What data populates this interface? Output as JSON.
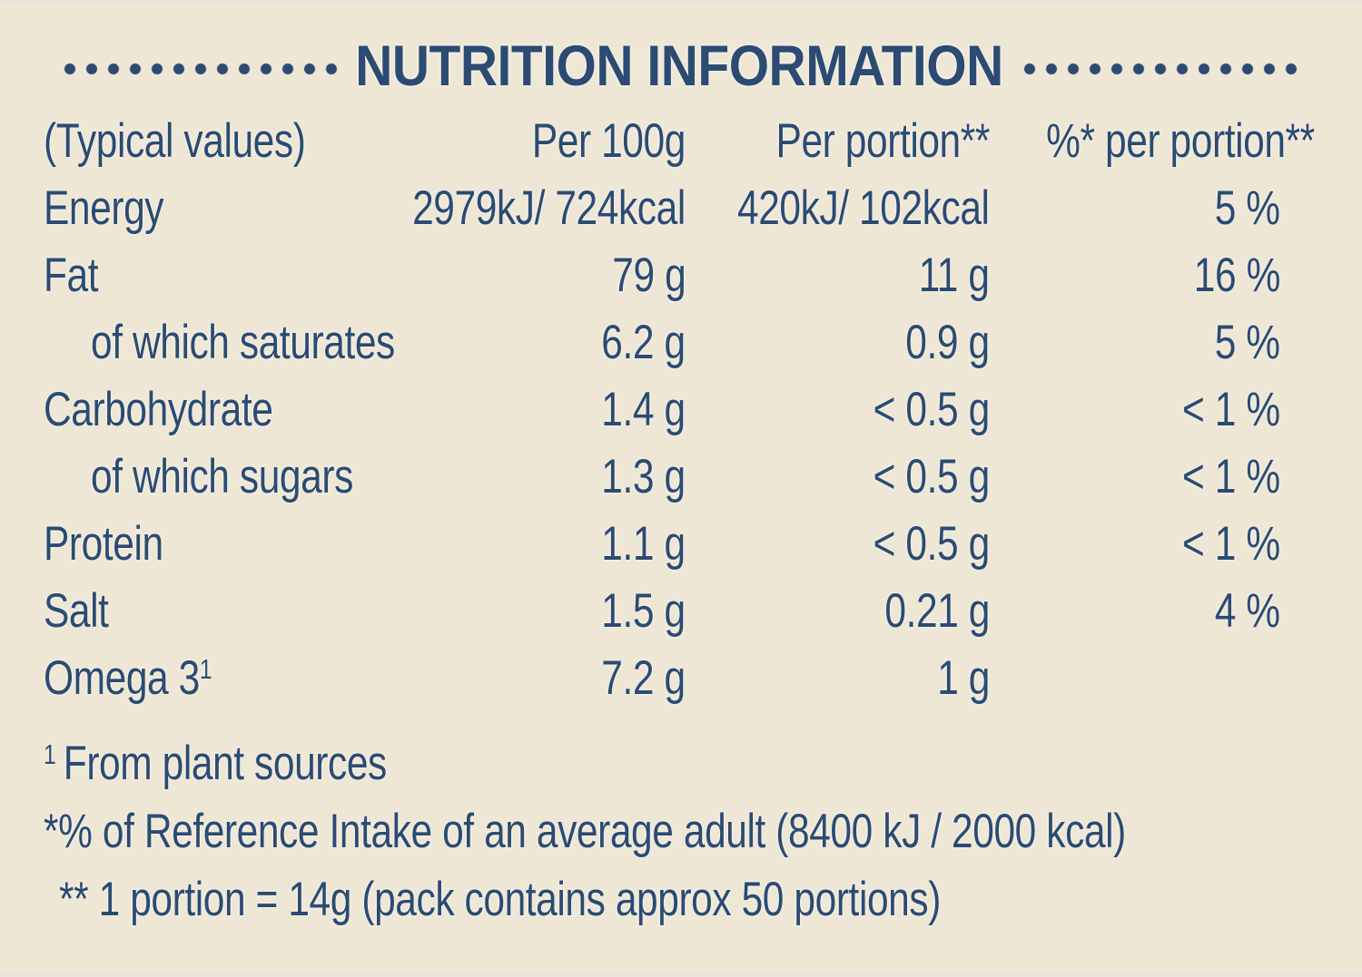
{
  "page": {
    "background_color": "#EFE7D6",
    "text_color": "#2B4B72"
  },
  "title": {
    "text": "NUTRITION INFORMATION"
  },
  "table": {
    "col_headers": {
      "typical": "(Typical values)",
      "per100": "Per 100g",
      "portion": "Per portion**",
      "pct": "%* per portion**"
    },
    "rows": [
      {
        "label": "Energy",
        "label_sup": "",
        "indent": false,
        "per100": "2979kJ/ 724kcal",
        "portion": "420kJ/ 102kcal",
        "pct": "5 %"
      },
      {
        "label": "Fat",
        "label_sup": "",
        "indent": false,
        "per100": "79 g",
        "portion": "11 g",
        "pct": "16 %"
      },
      {
        "label": "of which saturates",
        "label_sup": "",
        "indent": true,
        "per100": "6.2 g",
        "portion": "0.9 g",
        "pct": "5 %"
      },
      {
        "label": "Carbohydrate",
        "label_sup": "",
        "indent": false,
        "per100": "1.4 g",
        "portion": "< 0.5 g",
        "pct": "< 1 %"
      },
      {
        "label": "of which sugars",
        "label_sup": "",
        "indent": true,
        "per100": "1.3 g",
        "portion": "< 0.5 g",
        "pct": "< 1 %"
      },
      {
        "label": "Protein",
        "label_sup": "",
        "indent": false,
        "per100": "1.1 g",
        "portion": "< 0.5 g",
        "pct": "< 1 %"
      },
      {
        "label": "Salt",
        "label_sup": "",
        "indent": false,
        "per100": "1.5 g",
        "portion": "0.21 g",
        "pct": "4 %"
      },
      {
        "label": "Omega 3",
        "label_sup": "1",
        "indent": false,
        "per100": "7.2 g",
        "portion": "1 g",
        "pct": ""
      }
    ]
  },
  "footnotes": [
    {
      "sup": "1",
      "text": "From plant sources"
    },
    {
      "sup": "",
      "text": "*% of Reference Intake of an average adult (8400 kJ / 2000 kcal)"
    },
    {
      "sup": "",
      "text": "** 1 portion = 14g (pack contains approx 50 portions)"
    }
  ]
}
